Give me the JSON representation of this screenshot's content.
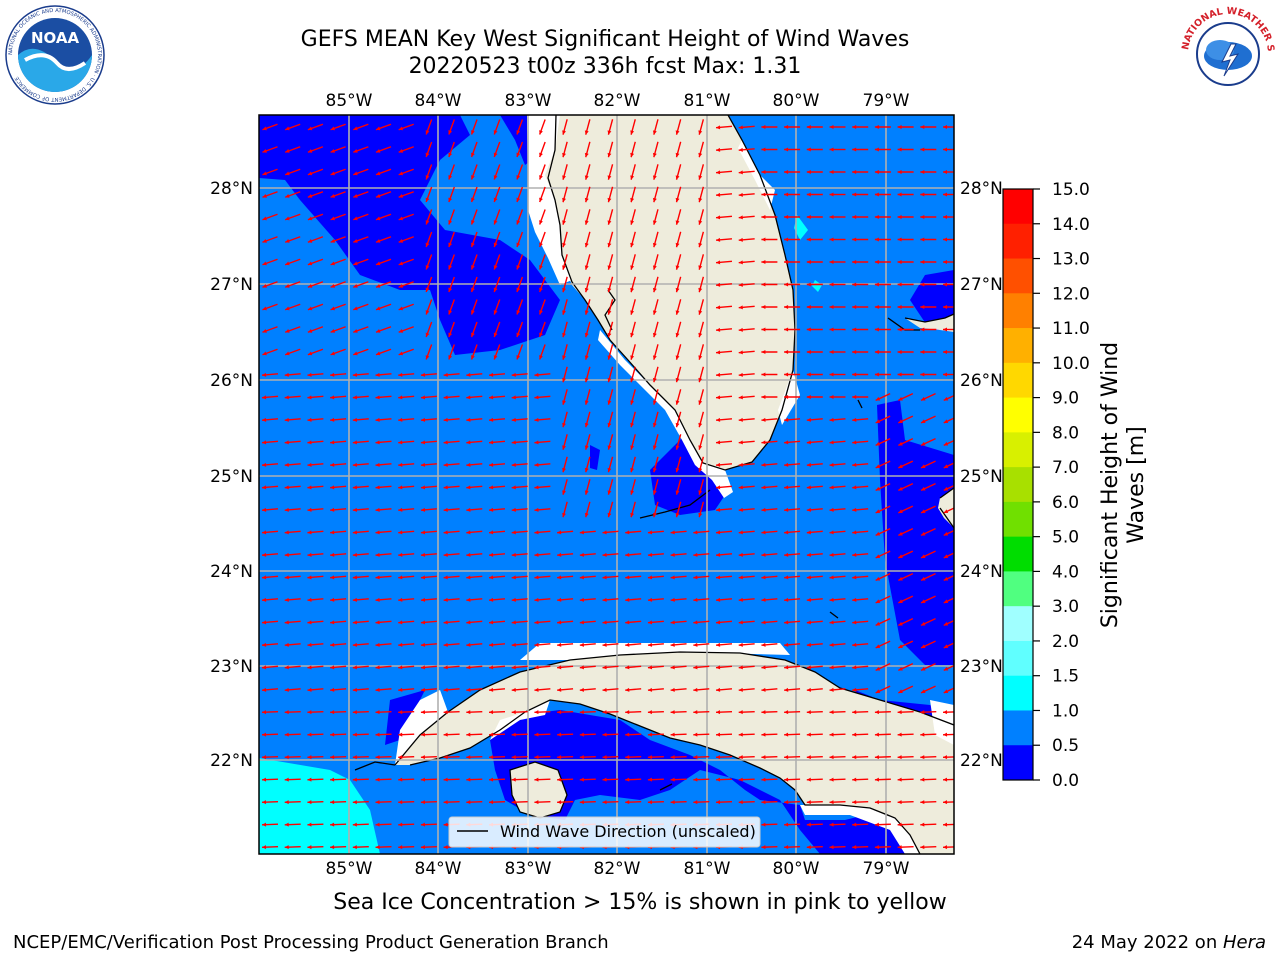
{
  "title": {
    "line1": "GEFS MEAN Key West Significant Height of Wind Waves",
    "line2": "20220523 t00z 336h fcst   Max: 1.31"
  },
  "map": {
    "lon_ticks": [
      "85°W",
      "84°W",
      "83°W",
      "82°W",
      "81°W",
      "80°W",
      "79°W"
    ],
    "lat_ticks": [
      "28°N",
      "27°N",
      "26°N",
      "25°N",
      "24°N",
      "23°N",
      "22°N"
    ],
    "lon_range": [
      -86.0,
      -78.3
    ],
    "lat_range": [
      21.0,
      28.75
    ],
    "legend_label": "Wind Wave Direction (unscaled)",
    "colors": {
      "land": "#eeecdc",
      "wave_0_05": "#0000ff",
      "wave_05_1": "#0080ff",
      "wave_1_15": "#00ffff",
      "arrow": "#ff0000",
      "grid": "#b0b0b0"
    }
  },
  "colorbar": {
    "label_line1": "Significant Height of Wind",
    "label_line2": "Waves [m]",
    "ticks": [
      "15.0",
      "14.0",
      "13.0",
      "12.0",
      "11.0",
      "10.0",
      "9.0",
      "8.0",
      "7.0",
      "6.0",
      "5.0",
      "4.0",
      "3.0",
      "2.0",
      "1.5",
      "1.0",
      "0.5",
      "0.0"
    ],
    "colors": [
      "#ff0000",
      "#ff2000",
      "#ff5000",
      "#ff8000",
      "#ffb000",
      "#ffd800",
      "#ffff00",
      "#d8f000",
      "#a8e000",
      "#70e000",
      "#00dd00",
      "#50ff80",
      "#a0ffff",
      "#60ffff",
      "#00ffff",
      "#0080ff",
      "#0000ff"
    ]
  },
  "logos": {
    "noaa": {
      "text": "NOAA",
      "ring_text": "NATIONAL OCEANIC AND ATMOSPHERIC ADMINISTRATION · U.S. DEPARTMENT OF COMMERCE"
    },
    "nws": {
      "ring_text": "NATIONAL WEATHER SERVICE"
    }
  },
  "caption": "Sea Ice Concentration > 15% is shown in pink to yellow",
  "footer": {
    "left": "NCEP/EMC/Verification Post Processing Product Generation Branch",
    "right_date": "24 May 2022 on ",
    "right_host": "Hera"
  }
}
